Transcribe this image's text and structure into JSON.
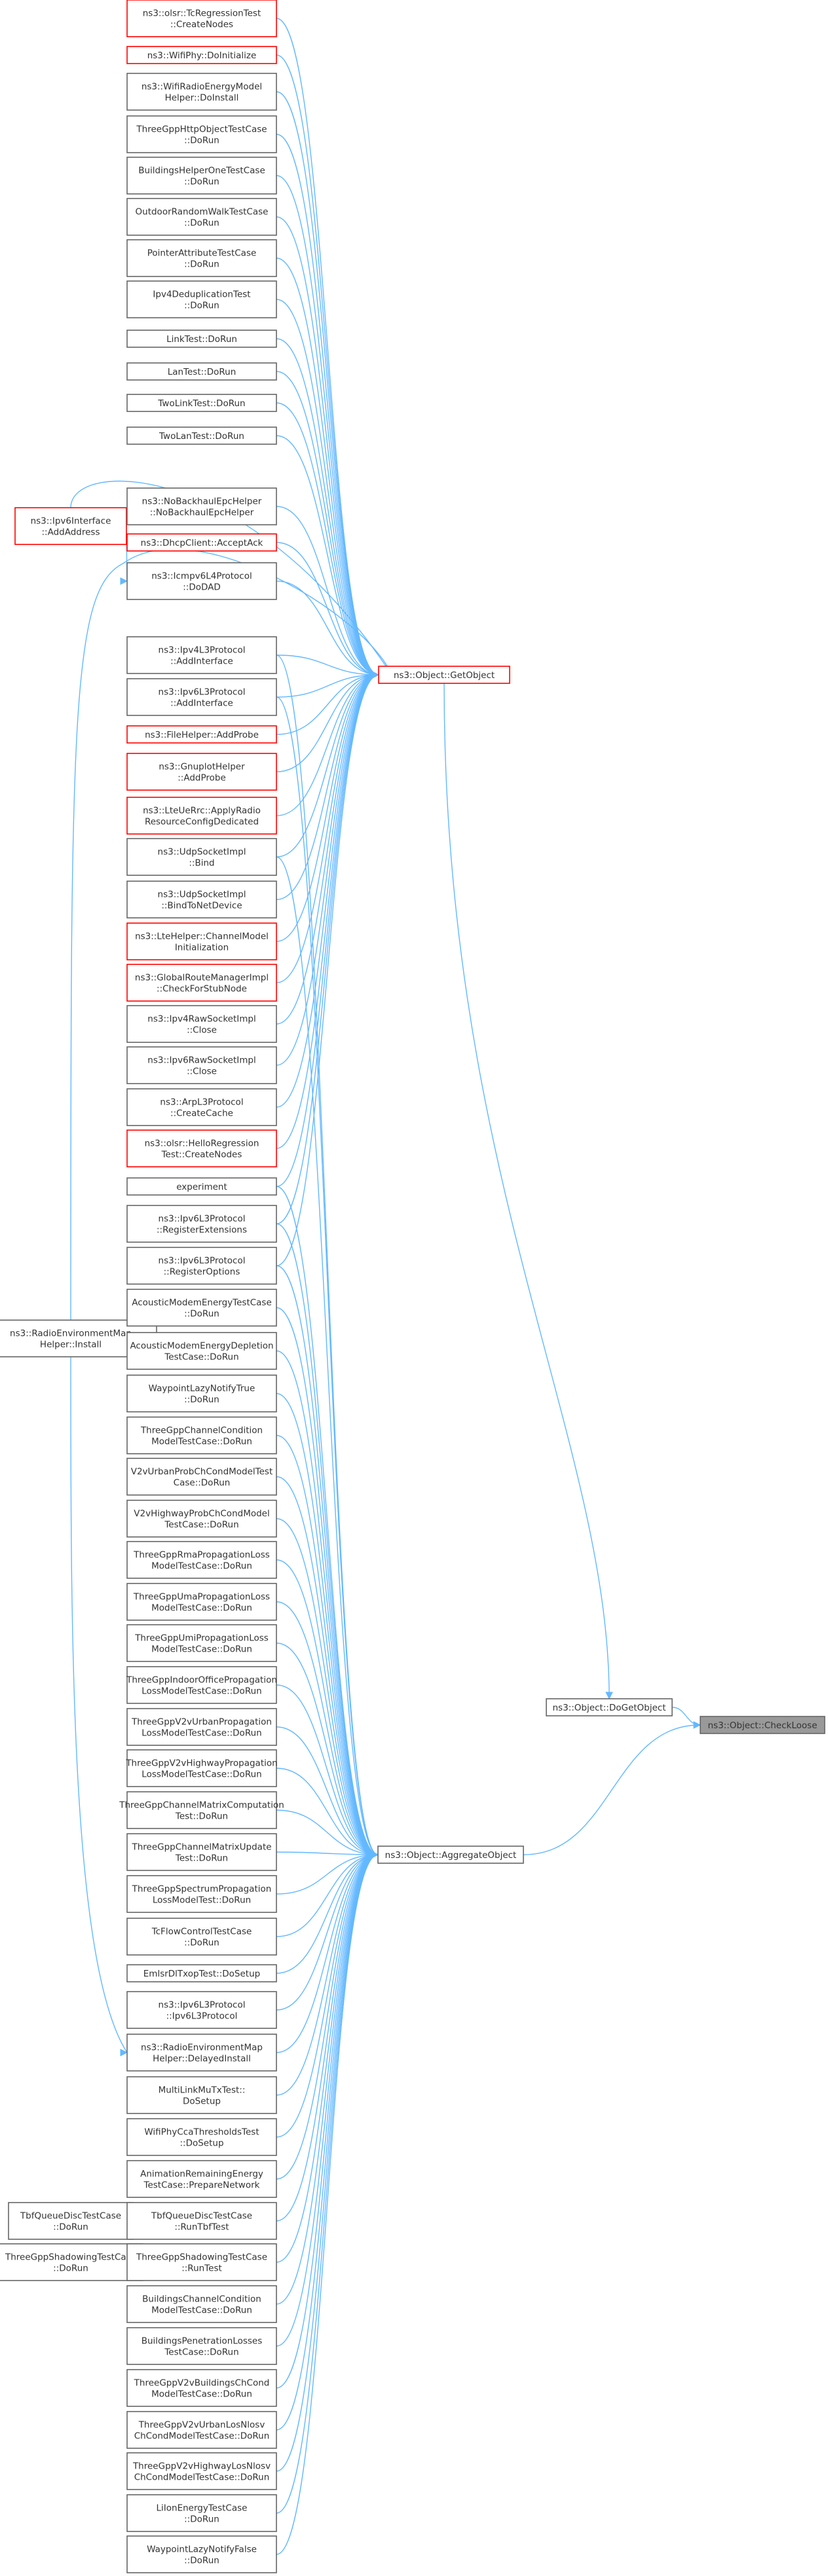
{
  "graph": {
    "title": "",
    "nodes": [
      {
        "id": "cr",
        "lines": [
          "ns3::olsr::TcRegressionTest",
          "::CreateNodes"
        ],
        "red": true
      },
      {
        "id": "wd",
        "lines": [
          "ns3::WifiPhy::DoInitialize"
        ],
        "red": true
      },
      {
        "id": "wre",
        "lines": [
          "ns3::WifiRadioEnergyModel",
          "Helper::DoInstall"
        ],
        "red": false
      },
      {
        "id": "hot",
        "lines": [
          "ThreeGppHttpObjectTestCase",
          "::DoRun"
        ],
        "red": false
      },
      {
        "id": "bho",
        "lines": [
          "BuildingsHelperOneTestCase",
          "::DoRun"
        ],
        "red": false
      },
      {
        "id": "orw",
        "lines": [
          "OutdoorRandomWalkTestCase",
          "::DoRun"
        ],
        "red": false
      },
      {
        "id": "pat",
        "lines": [
          "PointerAttributeTestCase",
          "::DoRun"
        ],
        "red": false
      },
      {
        "id": "ipd",
        "lines": [
          "Ipv4DeduplicationTest",
          "::DoRun"
        ],
        "red": false
      },
      {
        "id": "lkt",
        "lines": [
          "LinkTest::DoRun"
        ],
        "red": false
      },
      {
        "id": "lnt",
        "lines": [
          "LanTest::DoRun"
        ],
        "red": false
      },
      {
        "id": "tlk",
        "lines": [
          "TwoLinkTest::DoRun"
        ],
        "red": false
      },
      {
        "id": "tln",
        "lines": [
          "TwoLanTest::DoRun"
        ],
        "red": false
      },
      {
        "id": "ipi",
        "lines": [
          "ns3::Ipv6Interface",
          "::AddAddress"
        ],
        "red": true
      },
      {
        "id": "nbh",
        "lines": [
          "ns3::NoBackhaulEpcHelper",
          "::NoBackhaulEpcHelper"
        ],
        "red": false
      },
      {
        "id": "dca",
        "lines": [
          "ns3::DhcpClient::AcceptAck"
        ],
        "red": true
      },
      {
        "id": "icm",
        "lines": [
          "ns3::Icmpv6L4Protocol",
          "::DoDAD"
        ],
        "red": false
      },
      {
        "id": "i4a",
        "lines": [
          "ns3::Ipv4L3Protocol",
          "::AddInterface"
        ],
        "red": false
      },
      {
        "id": "i6a",
        "lines": [
          "ns3::Ipv6L3Protocol",
          "::AddInterface"
        ],
        "red": false
      },
      {
        "id": "fha",
        "lines": [
          "ns3::FileHelper::AddProbe"
        ],
        "red": true
      },
      {
        "id": "gha",
        "lines": [
          "ns3::GnuplotHelper",
          "::AddProbe"
        ],
        "red": true
      },
      {
        "id": "lur",
        "lines": [
          "ns3::LteUeRrc::ApplyRadio",
          "ResourceConfigDedicated"
        ],
        "red": true
      },
      {
        "id": "usb",
        "lines": [
          "ns3::UdpSocketImpl",
          "::Bind"
        ],
        "red": false
      },
      {
        "id": "ubd",
        "lines": [
          "ns3::UdpSocketImpl",
          "::BindToNetDevice"
        ],
        "red": false
      },
      {
        "id": "lhc",
        "lines": [
          "ns3::LteHelper::ChannelModel",
          "Initialization"
        ],
        "red": true
      },
      {
        "id": "grm",
        "lines": [
          "ns3::GlobalRouteManagerImpl",
          "::CheckForStubNode"
        ],
        "red": true
      },
      {
        "id": "i4r",
        "lines": [
          "ns3::Ipv4RawSocketImpl",
          "::Close"
        ],
        "red": false
      },
      {
        "id": "i6r",
        "lines": [
          "ns3::Ipv6RawSocketImpl",
          "::Close"
        ],
        "red": false
      },
      {
        "id": "arp",
        "lines": [
          "ns3::ArpL3Protocol",
          "::CreateCache"
        ],
        "red": false
      },
      {
        "id": "ohr",
        "lines": [
          "ns3::olsr::HelloRegression",
          "Test::CreateNodes"
        ],
        "red": true
      },
      {
        "id": "exp",
        "lines": [
          "experiment"
        ],
        "red": false
      },
      {
        "id": "i6e",
        "lines": [
          "ns3::Ipv6L3Protocol",
          "::RegisterExtensions"
        ],
        "red": false
      },
      {
        "id": "i6o",
        "lines": [
          "ns3::Ipv6L3Protocol",
          "::RegisterOptions"
        ],
        "red": false
      },
      {
        "id": "rem",
        "lines": [
          "ns3::RadioEnvironmentMap",
          "Helper::Install"
        ],
        "red": false
      },
      {
        "id": "ame",
        "lines": [
          "AcousticModemEnergyTestCase",
          "::DoRun"
        ],
        "red": false
      },
      {
        "id": "amd",
        "lines": [
          "AcousticModemEnergyDepletion",
          "TestCase::DoRun"
        ],
        "red": false
      },
      {
        "id": "wlt",
        "lines": [
          "WaypointLazyNotifyTrue",
          "::DoRun"
        ],
        "red": false
      },
      {
        "id": "gcc",
        "lines": [
          "ThreeGppChannelCondition",
          "ModelTestCase::DoRun"
        ],
        "red": false
      },
      {
        "id": "v2u",
        "lines": [
          "V2vUrbanProbChCondModelTest",
          "Case::DoRun"
        ],
        "red": false
      },
      {
        "id": "v2h",
        "lines": [
          "V2vHighwayProbChCondModel",
          "TestCase::DoRun"
        ],
        "red": false
      },
      {
        "id": "rma",
        "lines": [
          "ThreeGppRmaPropagationLoss",
          "ModelTestCase::DoRun"
        ],
        "red": false
      },
      {
        "id": "uma",
        "lines": [
          "ThreeGppUmaPropagationLoss",
          "ModelTestCase::DoRun"
        ],
        "red": false
      },
      {
        "id": "umi",
        "lines": [
          "ThreeGppUmiPropagationLoss",
          "ModelTestCase::DoRun"
        ],
        "red": false
      },
      {
        "id": "ioo",
        "lines": [
          "ThreeGppIndoorOfficePropagation",
          "LossModelTestCase::DoRun"
        ],
        "red": false
      },
      {
        "id": "vup",
        "lines": [
          "ThreeGppV2vUrbanPropagation",
          "LossModelTestCase::DoRun"
        ],
        "red": false
      },
      {
        "id": "vhp",
        "lines": [
          "ThreeGppV2vHighwayPropagation",
          "LossModelTestCase::DoRun"
        ],
        "red": false
      },
      {
        "id": "cmc",
        "lines": [
          "ThreeGppChannelMatrixComputation",
          "Test::DoRun"
        ],
        "red": false
      },
      {
        "id": "cmu",
        "lines": [
          "ThreeGppChannelMatrixUpdate",
          "Test::DoRun"
        ],
        "red": false
      },
      {
        "id": "spl",
        "lines": [
          "ThreeGppSpectrumPropagation",
          "LossModelTest::DoRun"
        ],
        "red": false
      },
      {
        "id": "tcf",
        "lines": [
          "TcFlowControlTestCase",
          "::DoRun"
        ],
        "red": false
      },
      {
        "id": "emd",
        "lines": [
          "EmlsrDlTxopTest::DoSetup"
        ],
        "red": false
      },
      {
        "id": "i6p",
        "lines": [
          "ns3::Ipv6L3Protocol",
          "::Ipv6L3Protocol"
        ],
        "red": false
      },
      {
        "id": "rdi",
        "lines": [
          "ns3::RadioEnvironmentMap",
          "Helper::DelayedInstall"
        ],
        "red": false
      },
      {
        "id": "mlm",
        "lines": [
          "MultiLinkMuTxTest::",
          "DoSetup"
        ],
        "red": false
      },
      {
        "id": "wcc",
        "lines": [
          "WifiPhyCcaThresholdsTest",
          "::DoSetup"
        ],
        "red": false
      },
      {
        "id": "are",
        "lines": [
          "AnimationRemainingEnergy",
          "TestCase::PrepareNetwork"
        ],
        "red": false
      },
      {
        "id": "tbq",
        "lines": [
          "TbfQueueDiscTestCase",
          "::DoRun"
        ],
        "red": false
      },
      {
        "id": "tbr",
        "lines": [
          "TbfQueueDiscTestCase",
          "::RunTbfTest"
        ],
        "red": false
      },
      {
        "id": "gsh",
        "lines": [
          "ThreeGppShadowingTestCase",
          "::DoRun"
        ],
        "red": false
      },
      {
        "id": "gsr",
        "lines": [
          "ThreeGppShadowingTestCase",
          "::RunTest"
        ],
        "red": false
      },
      {
        "id": "bcc",
        "lines": [
          "BuildingsChannelCondition",
          "ModelTestCase::DoRun"
        ],
        "red": false
      },
      {
        "id": "bpl",
        "lines": [
          "BuildingsPenetrationLosses",
          "TestCase::DoRun"
        ],
        "red": false
      },
      {
        "id": "gvb",
        "lines": [
          "ThreeGppV2vBuildingsChCond",
          "ModelTestCase::DoRun"
        ],
        "red": false
      },
      {
        "id": "gvu",
        "lines": [
          "ThreeGppV2vUrbanLosNlosv",
          "ChCondModelTestCase::DoRun"
        ],
        "red": false
      },
      {
        "id": "gvh",
        "lines": [
          "ThreeGppV2vHighwayLosNlosv",
          "ChCondModelTestCase::DoRun"
        ],
        "red": false
      },
      {
        "id": "lie",
        "lines": [
          "LiIonEnergyTestCase",
          "::DoRun"
        ],
        "red": false
      },
      {
        "id": "wlf",
        "lines": [
          "WaypointLazyNotifyFalse",
          "::DoRun"
        ],
        "red": false
      },
      {
        "id": "gob",
        "lines": [
          "ns3::Object::GetObject"
        ],
        "red": true
      },
      {
        "id": "agg",
        "lines": [
          "ns3::Object::AggregateObject"
        ],
        "red": false
      },
      {
        "id": "dgo",
        "lines": [
          "ns3::Object::DoGetObject"
        ],
        "red": false
      },
      {
        "id": "chk",
        "lines": [
          "ns3::Object::CheckLoose"
        ],
        "red": false,
        "focus": true
      }
    ],
    "edges": [
      [
        "cr",
        "gob"
      ],
      [
        "wd",
        "gob"
      ],
      [
        "wre",
        "gob"
      ],
      [
        "hot",
        "gob"
      ],
      [
        "bho",
        "gob"
      ],
      [
        "orw",
        "gob"
      ],
      [
        "pat",
        "gob"
      ],
      [
        "ipd",
        "gob"
      ],
      [
        "lkt",
        "gob"
      ],
      [
        "lnt",
        "gob"
      ],
      [
        "tlk",
        "gob"
      ],
      [
        "tln",
        "gob"
      ],
      [
        "ipi",
        "gob"
      ],
      [
        "nbh",
        "gob"
      ],
      [
        "dca",
        "gob"
      ],
      [
        "icm",
        "gob"
      ],
      [
        "ipi",
        "icm"
      ],
      [
        "rem",
        "gob"
      ],
      [
        "i4a",
        "gob"
      ],
      [
        "i6a",
        "gob"
      ],
      [
        "fha",
        "gob"
      ],
      [
        "gha",
        "gob"
      ],
      [
        "lur",
        "gob"
      ],
      [
        "usb",
        "gob"
      ],
      [
        "ubd",
        "gob"
      ],
      [
        "lhc",
        "gob"
      ],
      [
        "grm",
        "gob"
      ],
      [
        "i4r",
        "gob"
      ],
      [
        "i6r",
        "gob"
      ],
      [
        "arp",
        "gob"
      ],
      [
        "ohr",
        "gob"
      ],
      [
        "exp",
        "gob"
      ],
      [
        "i6e",
        "gob"
      ],
      [
        "i6o",
        "gob"
      ],
      [
        "i4a",
        "agg"
      ],
      [
        "i6a",
        "agg"
      ],
      [
        "usb",
        "agg"
      ],
      [
        "exp",
        "agg"
      ],
      [
        "i6e",
        "agg"
      ],
      [
        "i6o",
        "agg"
      ],
      [
        "ame",
        "agg"
      ],
      [
        "amd",
        "agg"
      ],
      [
        "wlt",
        "agg"
      ],
      [
        "gcc",
        "agg"
      ],
      [
        "v2u",
        "agg"
      ],
      [
        "v2h",
        "agg"
      ],
      [
        "rma",
        "agg"
      ],
      [
        "uma",
        "agg"
      ],
      [
        "umi",
        "agg"
      ],
      [
        "ioo",
        "agg"
      ],
      [
        "vup",
        "agg"
      ],
      [
        "vhp",
        "agg"
      ],
      [
        "cmc",
        "agg"
      ],
      [
        "cmu",
        "agg"
      ],
      [
        "spl",
        "agg"
      ],
      [
        "tcf",
        "agg"
      ],
      [
        "emd",
        "agg"
      ],
      [
        "i6p",
        "agg"
      ],
      [
        "rdi",
        "agg"
      ],
      [
        "mlm",
        "agg"
      ],
      [
        "wcc",
        "agg"
      ],
      [
        "are",
        "agg"
      ],
      [
        "tbr",
        "agg"
      ],
      [
        "gsr",
        "agg"
      ],
      [
        "bcc",
        "agg"
      ],
      [
        "bpl",
        "agg"
      ],
      [
        "gvb",
        "agg"
      ],
      [
        "gvu",
        "agg"
      ],
      [
        "gvh",
        "agg"
      ],
      [
        "lie",
        "agg"
      ],
      [
        "wlf",
        "agg"
      ],
      [
        "rem",
        "rdi"
      ],
      [
        "tbq",
        "tbr"
      ],
      [
        "gsh",
        "gsr"
      ],
      [
        "gob",
        "dgo"
      ],
      [
        "agg",
        "chk"
      ],
      [
        "dgo",
        "chk"
      ]
    ]
  }
}
